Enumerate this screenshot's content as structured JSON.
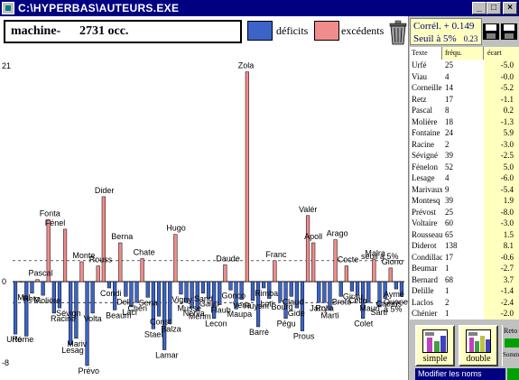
{
  "window": {
    "title": "C:\\HYPERBAS\\AUTEURS.EXE",
    "minimize_glyph": "_",
    "maximize_glyph": "□",
    "close_glyph": "×"
  },
  "header": {
    "label": "machine-",
    "count": "2731 occ."
  },
  "legend": {
    "deficits_label": "déficits",
    "excedents_label": "excédents",
    "deficit_color": "#3c64c8",
    "excedent_color": "#f08c8c"
  },
  "stats": {
    "correl_label": "Corrél. +",
    "correl_value": "0.149",
    "seuil_label": "Seuil à 5%",
    "seuil_value": "0.23"
  },
  "table": {
    "headers": {
      "text": "Texte",
      "freq": "fréqu.",
      "ecart": "écart"
    },
    "rows": [
      {
        "text": "Urfé",
        "freq": "25",
        "ecart": "-5.0"
      },
      {
        "text": "Viau",
        "freq": "4",
        "ecart": "-0.0"
      },
      {
        "text": "Corneille",
        "freq": "14",
        "ecart": "-5.2"
      },
      {
        "text": "Retz",
        "freq": "17",
        "ecart": "-1.1"
      },
      {
        "text": "Pascal",
        "freq": "8",
        "ecart": "0.2"
      },
      {
        "text": "Molière",
        "freq": "18",
        "ecart": "-1.3"
      },
      {
        "text": "Fontaine",
        "freq": "24",
        "ecart": "5.9"
      },
      {
        "text": "Racine",
        "freq": "2",
        "ecart": "-3.0"
      },
      {
        "text": "Sévigné",
        "freq": "39",
        "ecart": "-2.5"
      },
      {
        "text": "Fénelon",
        "freq": "52",
        "ecart": "5.0"
      },
      {
        "text": "Lesage",
        "freq": "4",
        "ecart": "-6.0"
      },
      {
        "text": "Marivaux",
        "freq": "9",
        "ecart": "-5.4"
      },
      {
        "text": "Montesq",
        "freq": "39",
        "ecart": "1.9"
      },
      {
        "text": "Prévost",
        "freq": "25",
        "ecart": "-8.0"
      },
      {
        "text": "Voltaire",
        "freq": "60",
        "ecart": "-3.0"
      },
      {
        "text": "Rousseau",
        "freq": "65",
        "ecart": "1.5"
      },
      {
        "text": "Diderot",
        "freq": "138",
        "ecart": "8.1"
      },
      {
        "text": "Condillac",
        "freq": "17",
        "ecart": "-0.6"
      },
      {
        "text": "Beumar",
        "freq": "1",
        "ecart": "-2.7"
      },
      {
        "text": "Bernard",
        "freq": "68",
        "ecart": "3.7"
      },
      {
        "text": "Delille",
        "freq": "1",
        "ecart": "-1.4"
      },
      {
        "text": "Laclos",
        "freq": "2",
        "ecart": "-2.4"
      },
      {
        "text": "Chénier",
        "freq": "1",
        "ecart": "-2.0"
      }
    ]
  },
  "tools": {
    "simple_label": "simple",
    "double_label": "double",
    "reto_label": "Reto",
    "somma_label": "Somma",
    "modify_label": "Modifier les noms"
  },
  "chart_data": {
    "type": "bar",
    "y_top_label": "21",
    "y_zero_label": "0",
    "y_bottom_label": "-8",
    "ylim": [
      -8,
      21
    ],
    "threshold_label": "seuil à 5%",
    "threshold_label_neg": "à 5%",
    "threshold_values": [
      2.0,
      -2.0
    ],
    "categories": [
      "Urfé",
      "Viau",
      "Corneille",
      "Retz",
      "Pascal",
      "Molière",
      "Fontaine",
      "Racine",
      "Sévigné",
      "Fénelon",
      "Lesage",
      "Marivaux",
      "Montesq",
      "Prévost",
      "Voltaire",
      "Rousseau",
      "Diderot",
      "Condillac",
      "Beumar",
      "Bernard",
      "Delille",
      "Laclos",
      "Chénier",
      "Chateaubriand",
      "Senancour",
      "Staël",
      "Constant",
      "Lamartine",
      "Balzac",
      "Hugo",
      "Vigny",
      "Musset",
      "Nerval",
      "Mérimée",
      "Sand",
      "Gautier",
      "Lecon",
      "Flaubert",
      "Daudet",
      "Goncourt",
      "Maupassant",
      "Verlaine",
      "Zola",
      "Huysmans",
      "Barrès",
      "Rimbaud",
      "Loti",
      "France",
      "Bourget",
      "Péguy",
      "Claudel",
      "Gide",
      "Proust",
      "Valéry",
      "Apollinaire",
      "Jarry",
      "Rolland",
      "Martin",
      "Aragon",
      "Breton",
      "Cocteau",
      "Giraudoux",
      "Céline",
      "Colette",
      "Mauriac",
      "Malraux",
      "Sartre",
      "Camus",
      "Giono",
      "Aymé",
      "Queneau"
    ],
    "values": [
      -5.0,
      -0.0,
      -5.2,
      -1.1,
      0.2,
      -1.3,
      5.9,
      -3.0,
      -2.5,
      5.0,
      -6.0,
      -5.4,
      1.9,
      -8.0,
      -3.0,
      1.5,
      8.1,
      -0.6,
      -2.7,
      3.7,
      -1.4,
      -2.4,
      -2.0,
      2.2,
      -1.5,
      -4.5,
      -3.3,
      -6.5,
      -4.0,
      4.5,
      -1.2,
      -2.0,
      -2.5,
      -2.8,
      -1.1,
      -1.6,
      -3.5,
      -2.2,
      1.6,
      -0.8,
      -2.6,
      -1.7,
      20.0,
      -1.8,
      -4.3,
      -0.6,
      -1.6,
      2.0,
      -1.9,
      -3.5,
      -1.4,
      -2.5,
      -4.7,
      6.3,
      3.7,
      -2.0,
      -2.0,
      -2.7,
      4.0,
      -1.4,
      1.5,
      -0.9,
      -1.3,
      -3.5,
      -2.0,
      2.1,
      -2.4,
      -1.6,
      1.3,
      -0.7,
      -1.4
    ],
    "labels": [
      {
        "text": "Urfé",
        "v": -5.0
      },
      {
        "text": "Rome",
        "v": -5.0
      },
      {
        "text": "Mal",
        "v": -1.0
      },
      {
        "text": "Retz",
        "v": -1.1
      },
      {
        "text": "Pascal",
        "v": 0.2
      },
      {
        "text": "Molière",
        "v": -1.3
      },
      {
        "text": "Fonta",
        "v": 5.9
      },
      {
        "text": "Fénel",
        "v": 5.0
      },
      {
        "text": "Racine",
        "v": -3.0
      },
      {
        "text": "Sévign",
        "v": -2.5
      },
      {
        "text": "Lesag",
        "v": -6.0
      },
      {
        "text": "Mariv",
        "v": -5.4
      },
      {
        "text": "Monte",
        "v": 1.9
      },
      {
        "text": "Prévo",
        "v": -8.0
      },
      {
        "text": "Volta",
        "v": -3.0
      },
      {
        "text": "Rouss",
        "v": 1.5
      },
      {
        "text": "Dider",
        "v": 8.1
      },
      {
        "text": "Condi",
        "v": -0.6
      },
      {
        "text": "Beaum",
        "v": -2.7
      },
      {
        "text": "Berna",
        "v": 3.7
      },
      {
        "text": "Deli",
        "v": -1.4
      },
      {
        "text": "Lacl",
        "v": -2.4
      },
      {
        "text": "Chén",
        "v": -2.0
      },
      {
        "text": "Chate",
        "v": 2.2
      },
      {
        "text": "Sena",
        "v": -1.5
      },
      {
        "text": "Stael",
        "v": -4.5
      },
      {
        "text": "Const",
        "v": -3.3
      },
      {
        "text": "Lamar",
        "v": -6.5
      },
      {
        "text": "Balza",
        "v": -4.0
      },
      {
        "text": "Hugo",
        "v": 4.5
      },
      {
        "text": "Vigny",
        "v": -1.2
      },
      {
        "text": "Musse",
        "v": -2.0
      },
      {
        "text": "Nerva",
        "v": -2.5
      },
      {
        "text": "Mérim",
        "v": -2.8
      },
      {
        "text": "Sand",
        "v": -1.1
      },
      {
        "text": "Gauti",
        "v": -1.6
      },
      {
        "text": "Lecon",
        "v": -3.5
      },
      {
        "text": "Flaub",
        "v": -2.2
      },
      {
        "text": "Daude",
        "v": 1.6
      },
      {
        "text": "Gonco",
        "v": -0.8
      },
      {
        "text": "Maupa",
        "v": -2.6
      },
      {
        "text": "Verla",
        "v": -1.7
      },
      {
        "text": "Zola",
        "v": 20.0
      },
      {
        "text": "Huysm",
        "v": -1.8
      },
      {
        "text": "Barrè",
        "v": -4.3
      },
      {
        "text": "Rimba",
        "v": -0.6
      },
      {
        "text": "Loti",
        "v": -1.6
      },
      {
        "text": "Franc",
        "v": 2.0
      },
      {
        "text": "Bourg",
        "v": -1.9
      },
      {
        "text": "Pégu",
        "v": -3.5
      },
      {
        "text": "Claud",
        "v": -1.4
      },
      {
        "text": "Gide",
        "v": -2.5
      },
      {
        "text": "Prous",
        "v": -4.7
      },
      {
        "text": "Valér",
        "v": 6.3
      },
      {
        "text": "Apoll",
        "v": 3.7
      },
      {
        "text": "Jarry",
        "v": -2.0
      },
      {
        "text": "Rolla",
        "v": -2.0
      },
      {
        "text": "Marti",
        "v": -2.7
      },
      {
        "text": "Arago",
        "v": 4.0
      },
      {
        "text": "Breto",
        "v": -1.4
      },
      {
        "text": "Cocte",
        "v": 1.5
      },
      {
        "text": "Girau",
        "v": -0.9
      },
      {
        "text": "Célin",
        "v": -1.3
      },
      {
        "text": "Colet",
        "v": -3.5
      },
      {
        "text": "Mauri",
        "v": -2.0
      },
      {
        "text": "Malra",
        "v": 2.1
      },
      {
        "text": "Sartr",
        "v": -2.4
      },
      {
        "text": "Camus",
        "v": -1.6
      },
      {
        "text": "Giono",
        "v": 1.3
      },
      {
        "text": "Aymé",
        "v": -0.7
      },
      {
        "text": "Quene",
        "v": -1.4
      }
    ]
  }
}
